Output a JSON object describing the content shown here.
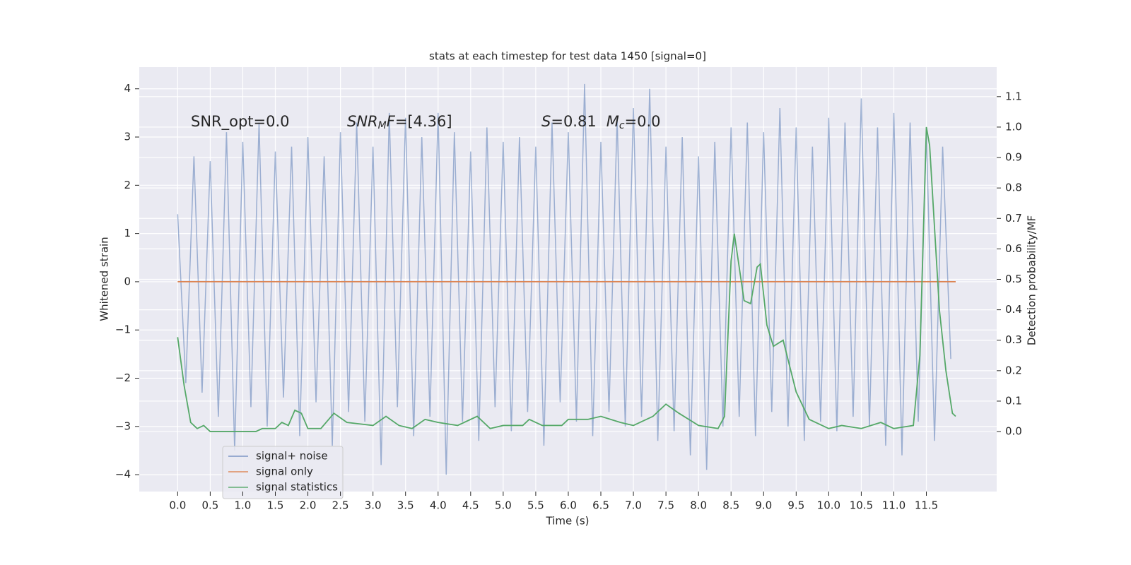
{
  "chart_data": {
    "type": "line",
    "title": "stats at each timestep for test data 1450 [signal=0]",
    "xlabel": "Time (s)",
    "ylabel": "Whitened strain",
    "y2label": "Detection probability/MF",
    "annotations": [
      [
        "SNR_opt=0.0"
      ],
      [
        "SNR",
        "M",
        "F",
        "=[4.36]"
      ],
      [
        "S",
        "=0.81",
        "M",
        "c",
        "=0.0"
      ]
    ],
    "xlim": [
      -0.59,
      12.58
    ],
    "ylim": [
      -4.35,
      4.45
    ],
    "y2lim": [
      -0.197,
      1.197
    ],
    "xticks": [
      {
        "value": 0,
        "label": "0.0"
      },
      0.5,
      {
        "value": 1,
        "label": "1.0"
      },
      1.5,
      {
        "value": 2,
        "label": "2.0"
      },
      2.5,
      {
        "value": 3,
        "label": "3.0"
      },
      3.5,
      {
        "value": 4,
        "label": "4.0"
      },
      4.5,
      {
        "value": 5,
        "label": "5.0"
      },
      5.5,
      {
        "value": 6,
        "label": "6.0"
      },
      6.5,
      {
        "value": 7,
        "label": "7.0"
      },
      7.5,
      {
        "value": 8,
        "label": "8.0"
      },
      8.5,
      {
        "value": 9,
        "label": "9.0"
      },
      9.5,
      {
        "value": 10,
        "label": "10.0"
      },
      10.5,
      {
        "value": 11,
        "label": "11.0"
      },
      11.5
    ],
    "yticks": [
      {
        "value": -4,
        "label": "−4"
      },
      {
        "value": -3,
        "label": "−3"
      },
      {
        "value": -2,
        "label": "−2"
      },
      {
        "value": -1,
        "label": "−1"
      },
      0,
      1,
      2,
      3,
      4
    ],
    "y2ticks": [
      {
        "value": 0,
        "label": "0.0"
      },
      0.1,
      0.2,
      0.3,
      0.4,
      0.5,
      0.6,
      0.7,
      0.8,
      0.9,
      {
        "value": 1,
        "label": "1.0"
      },
      1.1
    ],
    "grid": true,
    "legend": "lower left",
    "series": [
      {
        "name": "signal+ noise",
        "color": "#4c72b0",
        "x": [
          0,
          0.125,
          0.25,
          0.375,
          0.5,
          0.625,
          0.75,
          0.875,
          1,
          1.125,
          1.25,
          1.375,
          1.5,
          1.625,
          1.75,
          1.875,
          2,
          2.125,
          2.25,
          2.375,
          2.5,
          2.625,
          2.75,
          2.875,
          3,
          3.125,
          3.25,
          3.375,
          3.5,
          3.625,
          3.75,
          3.875,
          4,
          4.125,
          4.25,
          4.375,
          4.5,
          4.625,
          4.75,
          4.875,
          5,
          5.125,
          5.25,
          5.375,
          5.5,
          5.625,
          5.75,
          5.875,
          6,
          6.125,
          6.25,
          6.375,
          6.5,
          6.625,
          6.75,
          6.875,
          7,
          7.125,
          7.25,
          7.375,
          7.5,
          7.625,
          7.75,
          7.875,
          8,
          8.125,
          8.25,
          8.375,
          8.5,
          8.625,
          8.75,
          8.875,
          9,
          9.125,
          9.25,
          9.375,
          9.5,
          9.625,
          9.75,
          9.875,
          10,
          10.125,
          10.25,
          10.375,
          10.5,
          10.625,
          10.75,
          10.875,
          11,
          11.125,
          11.25,
          11.375,
          11.5,
          11.625,
          11.75,
          11.875
        ],
        "values": [
          1.4,
          -2.1,
          2.6,
          -2.3,
          2.5,
          -2.8,
          3.1,
          -3.5,
          2.9,
          -2.6,
          3.3,
          -3.0,
          2.7,
          -2.4,
          2.8,
          -3.2,
          3.0,
          -2.5,
          2.6,
          -3.4,
          3.1,
          -2.7,
          3.3,
          -2.9,
          2.8,
          -3.8,
          3.5,
          -2.6,
          3.4,
          -3.2,
          3.0,
          -2.8,
          3.5,
          -4.0,
          3.1,
          -2.9,
          2.7,
          -3.3,
          3.2,
          -2.6,
          2.9,
          -3.1,
          3.0,
          -2.7,
          2.8,
          -3.4,
          3.3,
          -2.5,
          3.1,
          -2.9,
          4.1,
          -3.2,
          2.9,
          -2.7,
          3.4,
          -3.0,
          3.6,
          -2.8,
          4.0,
          -3.3,
          2.8,
          -3.1,
          3.0,
          -3.6,
          2.6,
          -3.9,
          2.9,
          -3.0,
          3.2,
          -2.8,
          3.3,
          -3.2,
          3.1,
          -2.7,
          3.6,
          -3.0,
          3.2,
          -3.3,
          2.8,
          -2.9,
          3.4,
          -3.1,
          3.3,
          -2.8,
          3.8,
          -3.0,
          3.2,
          -3.4,
          3.5,
          -3.6,
          3.3,
          -2.9,
          3.1,
          -3.3,
          2.8,
          -1.6
        ]
      },
      {
        "name": "signal only",
        "color": "#dd8452",
        "x": [
          0,
          11.95
        ],
        "values": [
          0,
          0
        ]
      },
      {
        "name": "signal statistics",
        "color": "#55a868",
        "axis": "y2",
        "x": [
          0,
          0.1,
          0.2,
          0.3,
          0.4,
          0.5,
          0.7,
          1.0,
          1.2,
          1.3,
          1.5,
          1.6,
          1.7,
          1.8,
          1.9,
          2.0,
          2.2,
          2.4,
          2.6,
          3.0,
          3.2,
          3.4,
          3.6,
          3.8,
          4.0,
          4.3,
          4.6,
          4.8,
          5.0,
          5.3,
          5.4,
          5.6,
          5.9,
          6.0,
          6.3,
          6.5,
          6.8,
          7.0,
          7.3,
          7.5,
          7.7,
          8.0,
          8.3,
          8.4,
          8.5,
          8.55,
          8.7,
          8.8,
          8.9,
          8.95,
          9.05,
          9.15,
          9.3,
          9.5,
          9.7,
          10.0,
          10.2,
          10.5,
          10.8,
          11.0,
          11.3,
          11.4,
          11.5,
          11.55,
          11.7,
          11.8,
          11.9,
          11.95
        ],
        "values": [
          0.31,
          0.15,
          0.03,
          0.01,
          0.02,
          0.0,
          0.0,
          0.0,
          0.0,
          0.01,
          0.01,
          0.03,
          0.02,
          0.07,
          0.06,
          0.01,
          0.01,
          0.06,
          0.03,
          0.02,
          0.05,
          0.02,
          0.01,
          0.04,
          0.03,
          0.02,
          0.05,
          0.01,
          0.02,
          0.02,
          0.04,
          0.02,
          0.02,
          0.04,
          0.04,
          0.05,
          0.03,
          0.02,
          0.05,
          0.09,
          0.06,
          0.02,
          0.01,
          0.05,
          0.56,
          0.65,
          0.43,
          0.42,
          0.54,
          0.55,
          0.35,
          0.28,
          0.3,
          0.13,
          0.04,
          0.01,
          0.02,
          0.01,
          0.03,
          0.01,
          0.02,
          0.25,
          1.0,
          0.94,
          0.4,
          0.2,
          0.06,
          0.05
        ]
      }
    ]
  }
}
